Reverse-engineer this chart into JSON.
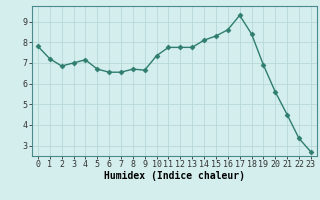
{
  "x": [
    0,
    1,
    2,
    3,
    4,
    5,
    6,
    7,
    8,
    9,
    10,
    11,
    12,
    13,
    14,
    15,
    16,
    17,
    18,
    19,
    20,
    21,
    22,
    23
  ],
  "y": [
    7.8,
    7.2,
    6.85,
    7.0,
    7.15,
    6.7,
    6.55,
    6.55,
    6.7,
    6.65,
    7.35,
    7.75,
    7.75,
    7.75,
    8.1,
    8.3,
    8.6,
    9.3,
    8.4,
    6.9,
    5.6,
    4.5,
    3.35,
    2.7
  ],
  "line_color": "#2e7d6e",
  "marker": "D",
  "marker_size": 2.5,
  "line_width": 1.0,
  "xlabel": "Humidex (Indice chaleur)",
  "xlabel_fontsize": 7,
  "ylabel": "",
  "xlim": [
    -0.5,
    23.5
  ],
  "ylim": [
    2.5,
    9.75
  ],
  "yticks": [
    3,
    4,
    5,
    6,
    7,
    8,
    9
  ],
  "xticks": [
    0,
    1,
    2,
    3,
    4,
    5,
    6,
    7,
    8,
    9,
    10,
    11,
    12,
    13,
    14,
    15,
    16,
    17,
    18,
    19,
    20,
    21,
    22,
    23
  ],
  "background_color": "#d4eeee",
  "grid_color": "#b8d8d8",
  "tick_fontsize": 6,
  "title": ""
}
